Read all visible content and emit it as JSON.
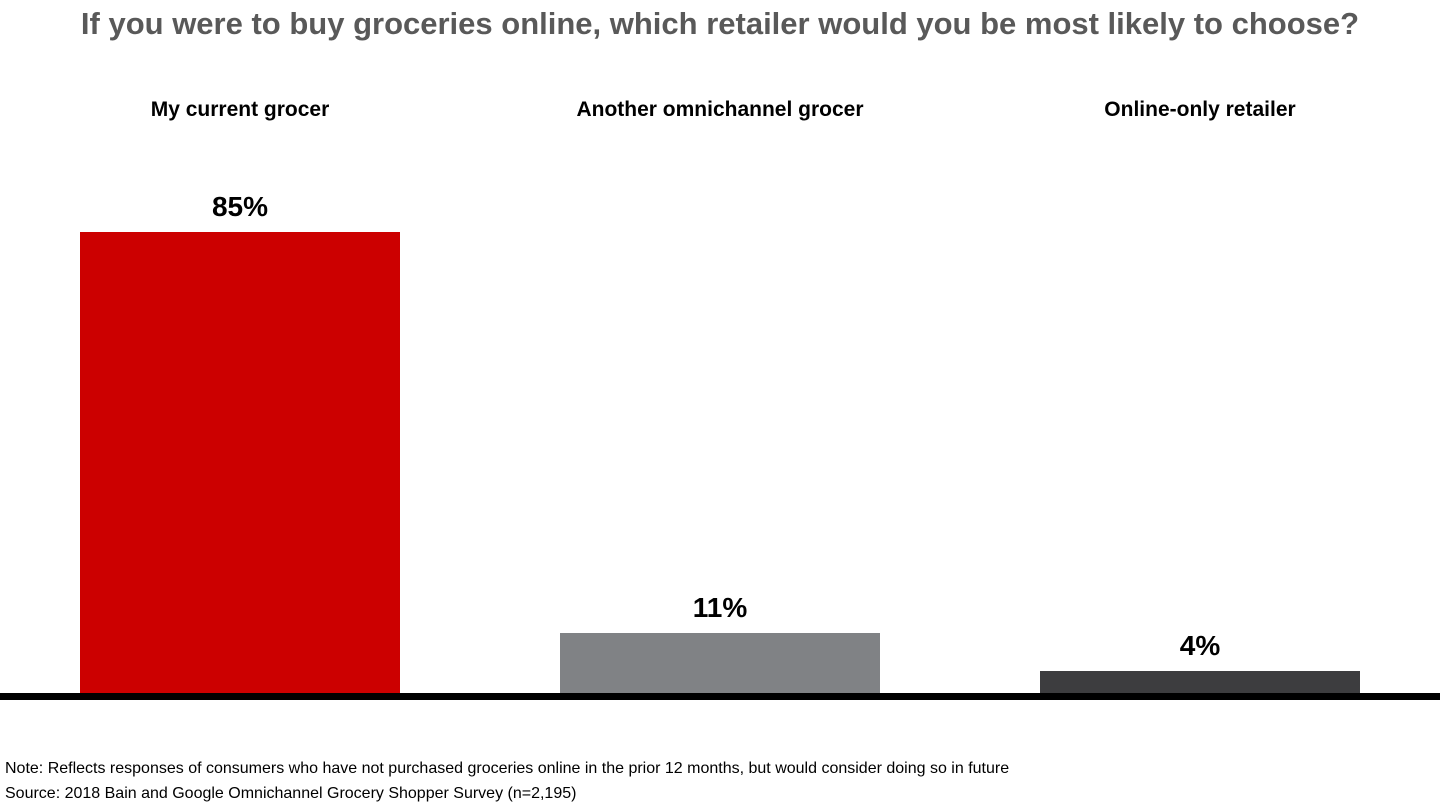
{
  "title": "If you were to buy groceries online, which retailer would you be most likely to choose?",
  "notes": {
    "note": "Note: Reflects responses of consumers who have not purchased groceries online in the prior 12 months, but would consider doing so in future",
    "source": "Source: 2018 Bain and Google Omnichannel Grocery Shopper Survey (n=2,195)"
  },
  "colors": {
    "title_text": "#595959",
    "category_text": "#000000",
    "value_text": "#000000",
    "axis": "#000000",
    "background": "#ffffff"
  },
  "chart_data": {
    "type": "bar",
    "title": "If you were to buy groceries online, which retailer would you be most likely to choose?",
    "categories": [
      "My current grocer",
      "Another omnichannel grocer",
      "Online-only retailer"
    ],
    "values": [
      85,
      11,
      4
    ],
    "value_labels": [
      "85%",
      "11%",
      "4%"
    ],
    "bar_colors": [
      "#cc0000",
      "#808285",
      "#3d3d3f"
    ],
    "xlabel": "",
    "ylabel": "",
    "ylim": [
      0,
      100
    ],
    "grid": false,
    "legend": false,
    "category_label_position": "top",
    "value_label_position": "above-bar"
  }
}
